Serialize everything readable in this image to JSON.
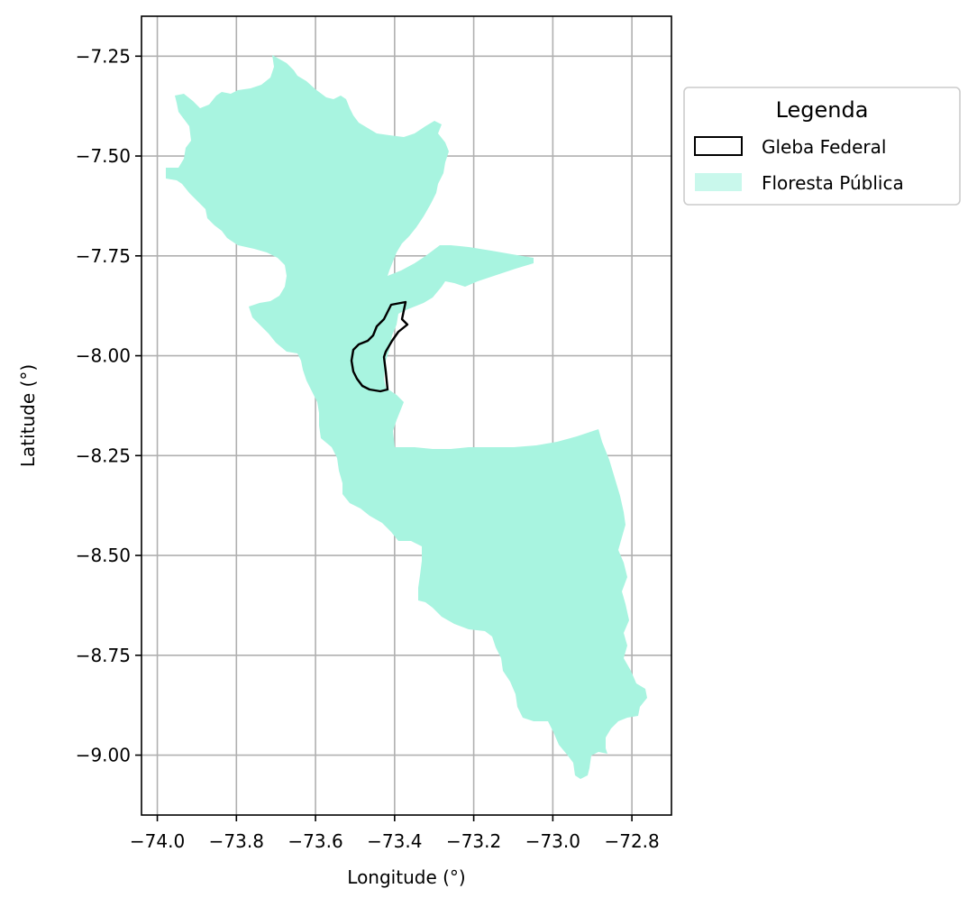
{
  "map": {
    "xlabel": "Longitude (°)",
    "ylabel": "Latitude (°)",
    "xlim": [
      -74.04,
      -72.7
    ],
    "ylim": [
      -9.15,
      -7.15
    ],
    "x_ticks": [
      -74.0,
      -73.8,
      -73.6,
      -73.4,
      -73.2,
      -73.0,
      -72.8
    ],
    "x_tick_labels": [
      "−74.0",
      "−73.8",
      "−73.6",
      "−73.4",
      "−73.2",
      "−73.0",
      "−72.8"
    ],
    "y_ticks": [
      -7.25,
      -7.5,
      -7.75,
      -8.0,
      -8.25,
      -8.5,
      -8.75,
      -9.0
    ],
    "y_tick_labels": [
      "−7.25",
      "−7.50",
      "−7.75",
      "−8.00",
      "−8.25",
      "−8.50",
      "−8.75",
      "−9.00"
    ],
    "grid": true
  },
  "legend": {
    "title": "Legenda",
    "items": [
      {
        "label": "Gleba Federal",
        "style": "outline",
        "color": "#000000"
      },
      {
        "label": "Floresta Pública",
        "style": "fill",
        "color": "#a8f4e0"
      }
    ]
  },
  "colors": {
    "forest": "#a8f4e0",
    "gleba": "#000000",
    "grid": "#b0b0b0"
  }
}
